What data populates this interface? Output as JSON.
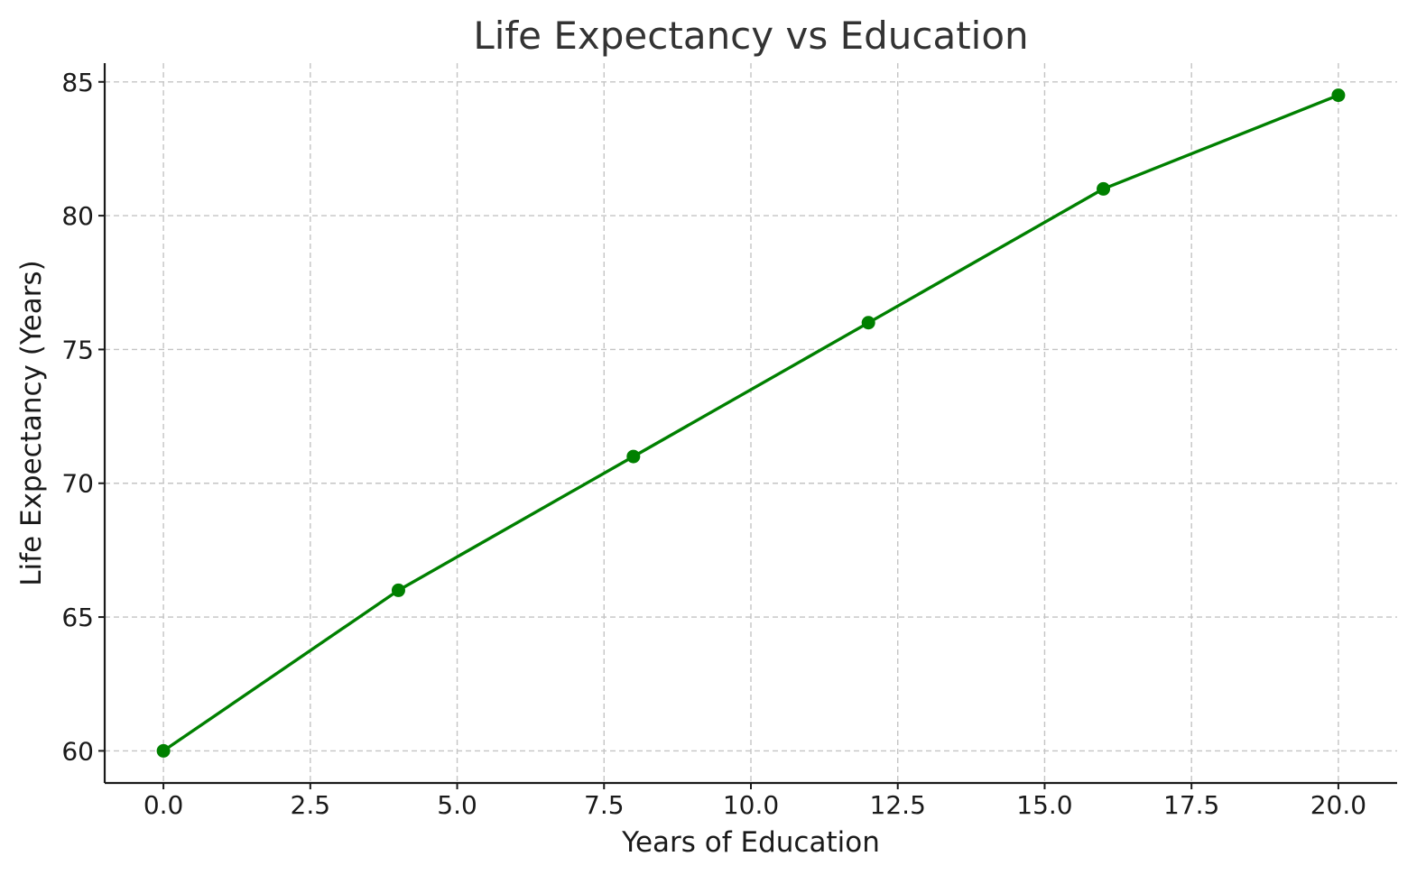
{
  "colors": {
    "series": "#008000",
    "grid": "#c4c4c4",
    "axis": "#1a1a1a",
    "title": "#333333"
  },
  "chart_data": {
    "type": "line",
    "title": "Life Expectancy vs Education",
    "xlabel": "Years of Education",
    "ylabel": "Life Expectancy (Years)",
    "xlim": [
      -1,
      21
    ],
    "ylim": [
      58.8,
      85.7
    ],
    "xticks": [
      0.0,
      2.5,
      5.0,
      7.5,
      10.0,
      12.5,
      15.0,
      17.5,
      20.0
    ],
    "xtick_labels": [
      "0.0",
      "2.5",
      "5.0",
      "7.5",
      "10.0",
      "12.5",
      "15.0",
      "17.5",
      "20.0"
    ],
    "yticks": [
      60,
      65,
      70,
      75,
      80,
      85
    ],
    "ytick_labels": [
      "60",
      "65",
      "70",
      "75",
      "80",
      "85"
    ],
    "grid": true,
    "marker": "circle",
    "x": [
      0,
      4,
      8,
      12,
      16,
      20
    ],
    "y": [
      60,
      66,
      71,
      76,
      81,
      84.5
    ]
  }
}
